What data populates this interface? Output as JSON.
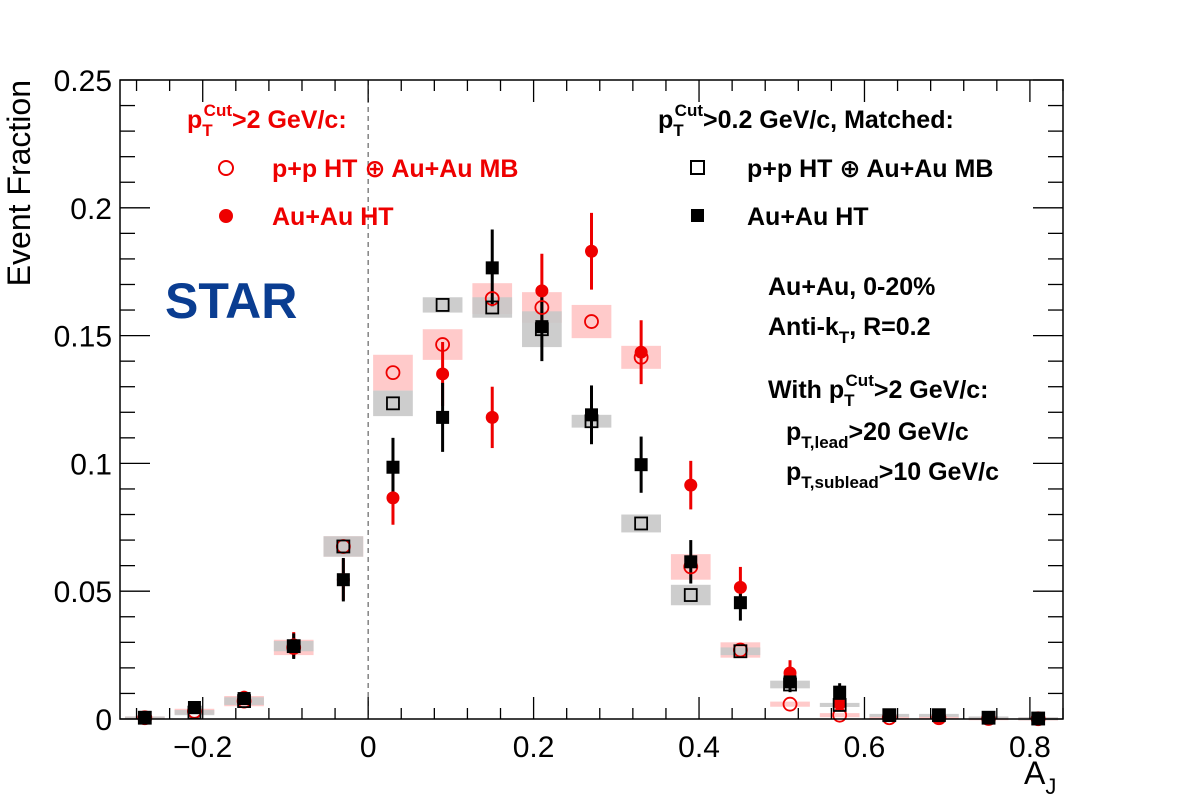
{
  "chart_data": {
    "type": "scatter",
    "title": "",
    "xlabel": "A",
    "xlabel_sub": "J",
    "ylabel": "Event Fraction",
    "xlim": [
      -0.3,
      0.84
    ],
    "ylim": [
      0,
      0.25
    ],
    "grid": false,
    "x_ticks": [
      -0.2,
      0,
      0.2,
      0.4,
      0.6,
      0.8
    ],
    "x_tick_labels": [
      "−0.2",
      "0",
      "0.2",
      "0.4",
      "0.6",
      "0.8"
    ],
    "y_ticks": [
      0,
      0.05,
      0.1,
      0.15,
      0.2,
      0.25
    ],
    "y_tick_labels": [
      "0",
      "0.05",
      "0.1",
      "0.15",
      "0.2",
      "0.25"
    ],
    "reference_line_x": 0,
    "colors": {
      "red": "#ee0000",
      "black": "#000000",
      "red_band": "#ffc4c4",
      "gray_band": "#c8c8c8",
      "logo": "#0a3d91"
    },
    "series": [
      {
        "name": "p+p HT ⊕ Au+Au MB",
        "group": "cut2",
        "marker": "open-circle",
        "color": "#ee0000",
        "x": [
          -0.27,
          -0.21,
          -0.15,
          -0.09,
          -0.03,
          0.03,
          0.09,
          0.15,
          0.21,
          0.27,
          0.33,
          0.39,
          0.45,
          0.51,
          0.57,
          0.63,
          0.69,
          0.75,
          0.81
        ],
        "y": [
          0.0005,
          0.003,
          0.007,
          0.028,
          0.0675,
          0.1355,
          0.1465,
          0.1645,
          0.161,
          0.1555,
          0.1415,
          0.0595,
          0.027,
          0.0058,
          0.0015,
          0.0005,
          0.0005,
          0.0002,
          0.0001
        ],
        "sys": [
          0.0005,
          0.001,
          0.002,
          0.003,
          0.004,
          0.007,
          0.006,
          0.006,
          0.006,
          0.0065,
          0.0045,
          0.005,
          0.003,
          0.001,
          0.0008,
          0.0005,
          0.0005,
          0.0005,
          0.0005
        ]
      },
      {
        "name": "Au+Au HT",
        "group": "cut2",
        "marker": "filled-circle",
        "color": "#ee0000",
        "x": [
          -0.27,
          -0.21,
          -0.15,
          -0.09,
          -0.03,
          0.03,
          0.09,
          0.15,
          0.21,
          0.27,
          0.33,
          0.39,
          0.45,
          0.51,
          0.57,
          0.63,
          0.69,
          0.75,
          0.81
        ],
        "y": [
          0.0005,
          0.0045,
          0.0085,
          0.029,
          0.0545,
          0.0865,
          0.135,
          0.118,
          0.1675,
          0.183,
          0.1435,
          0.0915,
          0.0515,
          0.018,
          0.006,
          0.0015,
          0.0005,
          0.0005,
          0.0001
        ],
        "err": [
          0.0005,
          0.0015,
          0.0025,
          0.005,
          0.008,
          0.0105,
          0.0125,
          0.012,
          0.0145,
          0.015,
          0.0125,
          0.0095,
          0.008,
          0.005,
          0.003,
          0.0015,
          0.001,
          0.001,
          0.0005
        ]
      },
      {
        "name": "p+p HT ⊕ Au+Au MB",
        "group": "matched",
        "marker": "open-square",
        "color": "#000000",
        "x": [
          -0.27,
          -0.21,
          -0.15,
          -0.09,
          -0.03,
          0.03,
          0.09,
          0.15,
          0.21,
          0.27,
          0.33,
          0.39,
          0.45,
          0.51,
          0.57,
          0.63,
          0.69,
          0.75,
          0.81
        ],
        "y": [
          0.0005,
          0.0025,
          0.007,
          0.0285,
          0.0675,
          0.1235,
          0.162,
          0.161,
          0.1525,
          0.1165,
          0.0765,
          0.0485,
          0.0265,
          0.0135,
          0.0055,
          0.0015,
          0.0015,
          0.0005,
          0.0002
        ],
        "sys": [
          0.0005,
          0.001,
          0.0015,
          0.002,
          0.004,
          0.005,
          0.003,
          0.004,
          0.007,
          0.0025,
          0.0035,
          0.004,
          0.0015,
          0.0015,
          0.0008,
          0.0005,
          0.0005,
          0.0005,
          0.0005
        ]
      },
      {
        "name": "Au+Au HT",
        "group": "matched",
        "marker": "filled-square",
        "color": "#000000",
        "x": [
          -0.27,
          -0.21,
          -0.15,
          -0.09,
          -0.03,
          0.03,
          0.09,
          0.15,
          0.21,
          0.27,
          0.33,
          0.39,
          0.45,
          0.51,
          0.57,
          0.63,
          0.69,
          0.75,
          0.81
        ],
        "y": [
          0.0005,
          0.0045,
          0.008,
          0.0285,
          0.0545,
          0.0985,
          0.118,
          0.1765,
          0.1535,
          0.119,
          0.0995,
          0.0615,
          0.0455,
          0.0145,
          0.0105,
          0.0015,
          0.0015,
          0.0005,
          0.0001
        ],
        "err": [
          0.0005,
          0.0015,
          0.0025,
          0.005,
          0.0085,
          0.0115,
          0.0135,
          0.015,
          0.0135,
          0.0115,
          0.011,
          0.0085,
          0.007,
          0.004,
          0.0035,
          0.0015,
          0.001,
          0.001,
          0.0005
        ]
      }
    ],
    "legend": {
      "left_heading": "p",
      "left_heading_sub": "T",
      "left_heading_sup": "Cut",
      "left_heading_rest": ">2 GeV/c:",
      "left_entries": [
        "p+p HT ⊕ Au+Au MB",
        "Au+Au HT"
      ],
      "right_heading": "p",
      "right_heading_sub": "T",
      "right_heading_sup": "Cut",
      "right_heading_rest": ">0.2 GeV/c, Matched:",
      "right_entries": [
        "p+p HT ⊕ Au+Au MB",
        "Au+Au HT"
      ]
    },
    "annotations": {
      "logo": "STAR",
      "collision": "Au+Au, 0-20%",
      "algo_pre": "Anti-k",
      "algo_sub": "T",
      "algo_post": ", R=0.2",
      "with_pre": "With p",
      "with_sub": "T",
      "with_sup": "Cut",
      "with_post": ">2 GeV/c:",
      "lead_pre": "p",
      "lead_sub": "T,lead",
      "lead_post": ">20 GeV/c",
      "sublead_pre": "p",
      "sublead_sub": "T,sublead",
      "sublead_post": ">10 GeV/c"
    }
  }
}
